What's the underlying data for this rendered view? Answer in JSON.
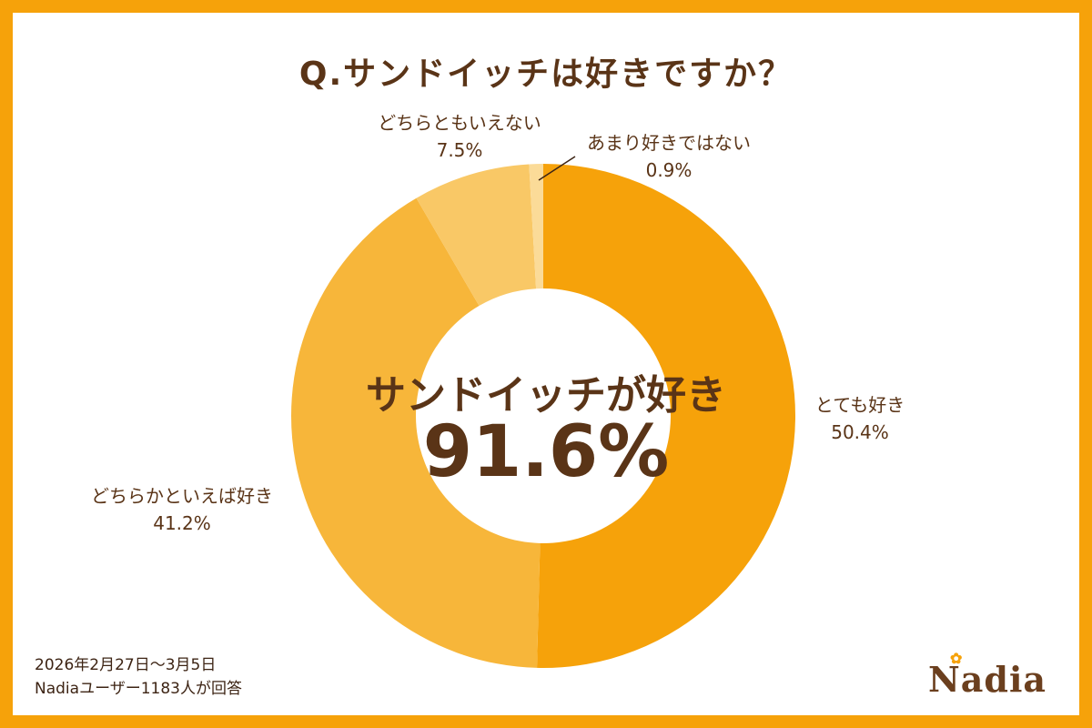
{
  "title": "Q.サンドイッチは好きですか？",
  "center": {
    "subtitle": "サンドイッチが好き",
    "value": "91.6%"
  },
  "footer": {
    "period": "2026年2月27日～3月5日",
    "respondents": "Nadiaユーザー1183人が回答"
  },
  "logo": {
    "text": "Nadia",
    "icon": "flower-icon"
  },
  "colors": {
    "frame": "#F6A20A",
    "text": "#5A3417"
  },
  "chart_data": {
    "type": "pie",
    "variant": "donut",
    "start_angle_deg": 0,
    "direction": "clockwise",
    "slices": [
      {
        "label": "とても好き",
        "value": 50.4,
        "value_label": "50.4%",
        "color": "#F6A20A"
      },
      {
        "label": "どちらかといえば好き",
        "value": 41.2,
        "value_label": "41.2%",
        "color": "#F7B63A"
      },
      {
        "label": "どちらともいえない",
        "value": 7.5,
        "value_label": "7.5%",
        "color": "#F9C866"
      },
      {
        "label": "あまり好きではない",
        "value": 0.9,
        "value_label": "0.9%",
        "color": "#FBDB98"
      }
    ]
  }
}
